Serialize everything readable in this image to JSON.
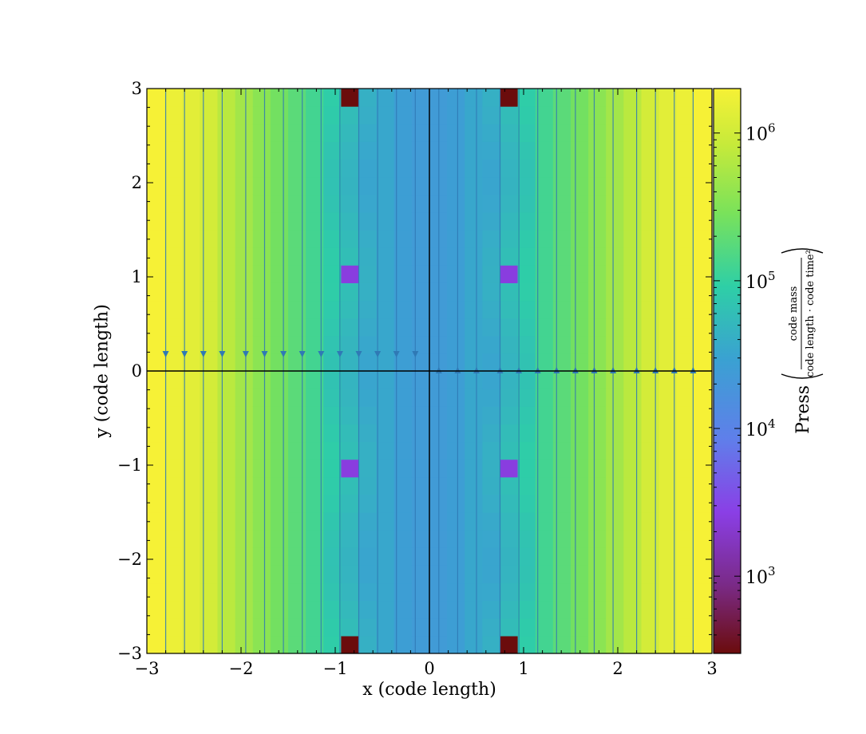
{
  "chart_data": {
    "type": "heatmap",
    "title": "",
    "xlabel": "x  (code length)",
    "ylabel": "y  (code length)",
    "xlim": [
      -3,
      3
    ],
    "ylim": [
      -3,
      3
    ],
    "x_ticks": [
      -3,
      -2,
      -1,
      0,
      1,
      2,
      3
    ],
    "y_ticks": [
      -3,
      -2,
      -1,
      0,
      1,
      2,
      3
    ],
    "x_tick_labels": [
      "−3",
      "−2",
      "−1",
      "0",
      "1",
      "2",
      "3"
    ],
    "y_tick_labels": [
      "−3",
      "−2",
      "−1",
      "0",
      "1",
      "2",
      "3"
    ],
    "grid": false,
    "colorbar": {
      "label_prefix": "Press",
      "label_units_numerator": "code mass",
      "label_units_denominator": "code length · code time²",
      "scale": "log",
      "range": [
        300,
        2000000
      ],
      "ticks": [
        {
          "value": 1000,
          "base": "10",
          "exp": "3"
        },
        {
          "value": 10000,
          "base": "10",
          "exp": "4"
        },
        {
          "value": 100000,
          "base": "10",
          "exp": "5"
        },
        {
          "value": 1000000,
          "base": "10",
          "exp": "6"
        }
      ],
      "colormap": [
        "#6b0c0c",
        "#7a2a86",
        "#8a3fe6",
        "#5f7fea",
        "#3aa1d2",
        "#2ecfa6",
        "#7ae25a",
        "#c6ea3a",
        "#f6f136"
      ]
    },
    "grid_cells": 32,
    "pressure_column_profile_log10": [
      6.3,
      6.2,
      6.1,
      5.95,
      5.75,
      5.6,
      5.45,
      5.3,
      5.15,
      5.0,
      4.85,
      4.7,
      4.55,
      4.45,
      4.35,
      4.3,
      4.3,
      4.35,
      4.45,
      4.55,
      4.7,
      4.85,
      5.0,
      5.15,
      5.3,
      5.45,
      5.6,
      5.75,
      5.95,
      6.1,
      6.2,
      6.3
    ],
    "low_pressure_spots": [
      {
        "x": -0.84,
        "y": 2.9,
        "value": 300
      },
      {
        "x": 0.84,
        "y": 2.9,
        "value": 300
      },
      {
        "x": -0.84,
        "y": -2.9,
        "value": 300
      },
      {
        "x": 0.84,
        "y": -2.9,
        "value": 300
      },
      {
        "x": -0.84,
        "y": 1.05,
        "value": 2500
      },
      {
        "x": 0.84,
        "y": 1.05,
        "value": 2500
      },
      {
        "x": -0.84,
        "y": -1.05,
        "value": 2500
      },
      {
        "x": 0.84,
        "y": -1.05,
        "value": 2500
      }
    ],
    "streamlines": {
      "color": "#2f79b5",
      "x_positions": [
        -2.8,
        -2.6,
        -2.4,
        -2.2,
        -1.95,
        -1.75,
        -1.55,
        -1.35,
        -1.15,
        -0.95,
        -0.75,
        -0.55,
        -0.35,
        -0.15,
        0.1,
        0.3,
        0.5,
        0.75,
        0.95,
        1.15,
        1.35,
        1.55,
        1.75,
        1.95,
        2.2,
        2.4,
        2.6,
        2.8
      ],
      "arrow_y": 0.17,
      "left_arrow_direction": "down",
      "right_arrow_direction": "up"
    }
  }
}
